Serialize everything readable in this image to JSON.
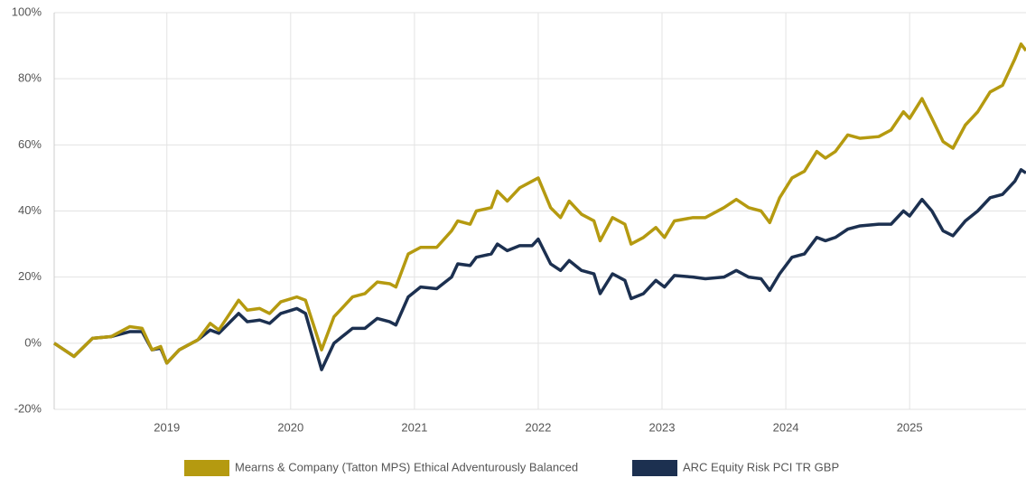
{
  "chart_data": {
    "type": "line",
    "x": [
      2018.09,
      2018.25,
      2018.4,
      2018.55,
      2018.7,
      2018.8,
      2018.88,
      2018.95,
      2019.0,
      2019.1,
      2019.25,
      2019.35,
      2019.42,
      2019.58,
      2019.65,
      2019.75,
      2019.83,
      2019.92,
      2020.05,
      2020.12,
      2020.25,
      2020.35,
      2020.5,
      2020.6,
      2020.7,
      2020.8,
      2020.85,
      2020.95,
      2021.05,
      2021.18,
      2021.3,
      2021.35,
      2021.45,
      2021.5,
      2021.62,
      2021.67,
      2021.75,
      2021.85,
      2021.95,
      2022.0,
      2022.1,
      2022.18,
      2022.25,
      2022.35,
      2022.45,
      2022.5,
      2022.6,
      2022.7,
      2022.75,
      2022.85,
      2022.95,
      2023.02,
      2023.1,
      2023.25,
      2023.35,
      2023.5,
      2023.6,
      2023.7,
      2023.8,
      2023.87,
      2023.95,
      2024.05,
      2024.15,
      2024.25,
      2024.32,
      2024.4,
      2024.5,
      2024.6,
      2024.75,
      2024.85,
      2024.95,
      2025.0,
      2025.1,
      2025.18,
      2025.27,
      2025.35,
      2025.45,
      2025.55,
      2025.65,
      2025.75,
      2025.85,
      2025.9,
      2025.94
    ],
    "series": [
      {
        "name": "Mearns & Company (Tatton MPS) Ethical Adventurously Balanced",
        "color": "#b59a10",
        "values": [
          0,
          -4,
          1.5,
          2,
          5,
          4.5,
          -2,
          -1,
          -6,
          -2,
          1,
          6,
          4,
          13,
          10,
          10.5,
          9,
          12.5,
          14,
          13,
          -2,
          8,
          14,
          15,
          18.5,
          18,
          17,
          27,
          29,
          29,
          34,
          37,
          36,
          40,
          41,
          46,
          43,
          47,
          49,
          50,
          41,
          38,
          43,
          39,
          37,
          31,
          38,
          36,
          30,
          32,
          35,
          32,
          37,
          38,
          38,
          41,
          43.5,
          41,
          40,
          36.5,
          44,
          50,
          52,
          58,
          56,
          58,
          63,
          62,
          62.5,
          64.5,
          70,
          68,
          74,
          68,
          61,
          59,
          66,
          70,
          76,
          78,
          86,
          90.5,
          88.5
        ]
      },
      {
        "name": "ARC Equity Risk PCI TR GBP",
        "color": "#1c3050",
        "values": [
          0,
          -4,
          1.5,
          2,
          3.5,
          3.5,
          -2,
          -1.5,
          -6,
          -2,
          1,
          4,
          3,
          9,
          6.5,
          7,
          6,
          9,
          10.5,
          9,
          -8,
          0,
          4.5,
          4.5,
          7.5,
          6.5,
          5.5,
          14,
          17,
          16.5,
          20,
          24,
          23.5,
          26,
          27,
          30,
          28,
          29.5,
          29.5,
          31.5,
          24,
          22,
          25,
          22,
          21,
          15,
          21,
          19,
          13.5,
          15,
          19,
          17,
          20.5,
          20,
          19.5,
          20,
          22,
          20,
          19.5,
          16,
          21,
          26,
          27,
          32,
          31,
          32,
          34.5,
          35.5,
          36,
          36,
          40,
          38.5,
          43.5,
          40,
          34,
          32.5,
          37,
          40,
          44,
          45,
          49,
          52.5,
          51.5
        ]
      }
    ],
    "xlim": [
      2018.09,
      2025.94
    ],
    "xticks": [
      2019,
      2020,
      2021,
      2022,
      2023,
      2024,
      2025
    ],
    "ylim": [
      -20,
      100
    ],
    "yticks": [
      {
        "value": -20,
        "label": "-20%"
      },
      {
        "value": 0,
        "label": "0%"
      },
      {
        "value": 20,
        "label": "20%"
      },
      {
        "value": 40,
        "label": "40%"
      },
      {
        "value": 60,
        "label": "60%"
      },
      {
        "value": 80,
        "label": "80%"
      },
      {
        "value": 100,
        "label": "100%"
      }
    ],
    "grid": true,
    "legend": "bottom"
  }
}
